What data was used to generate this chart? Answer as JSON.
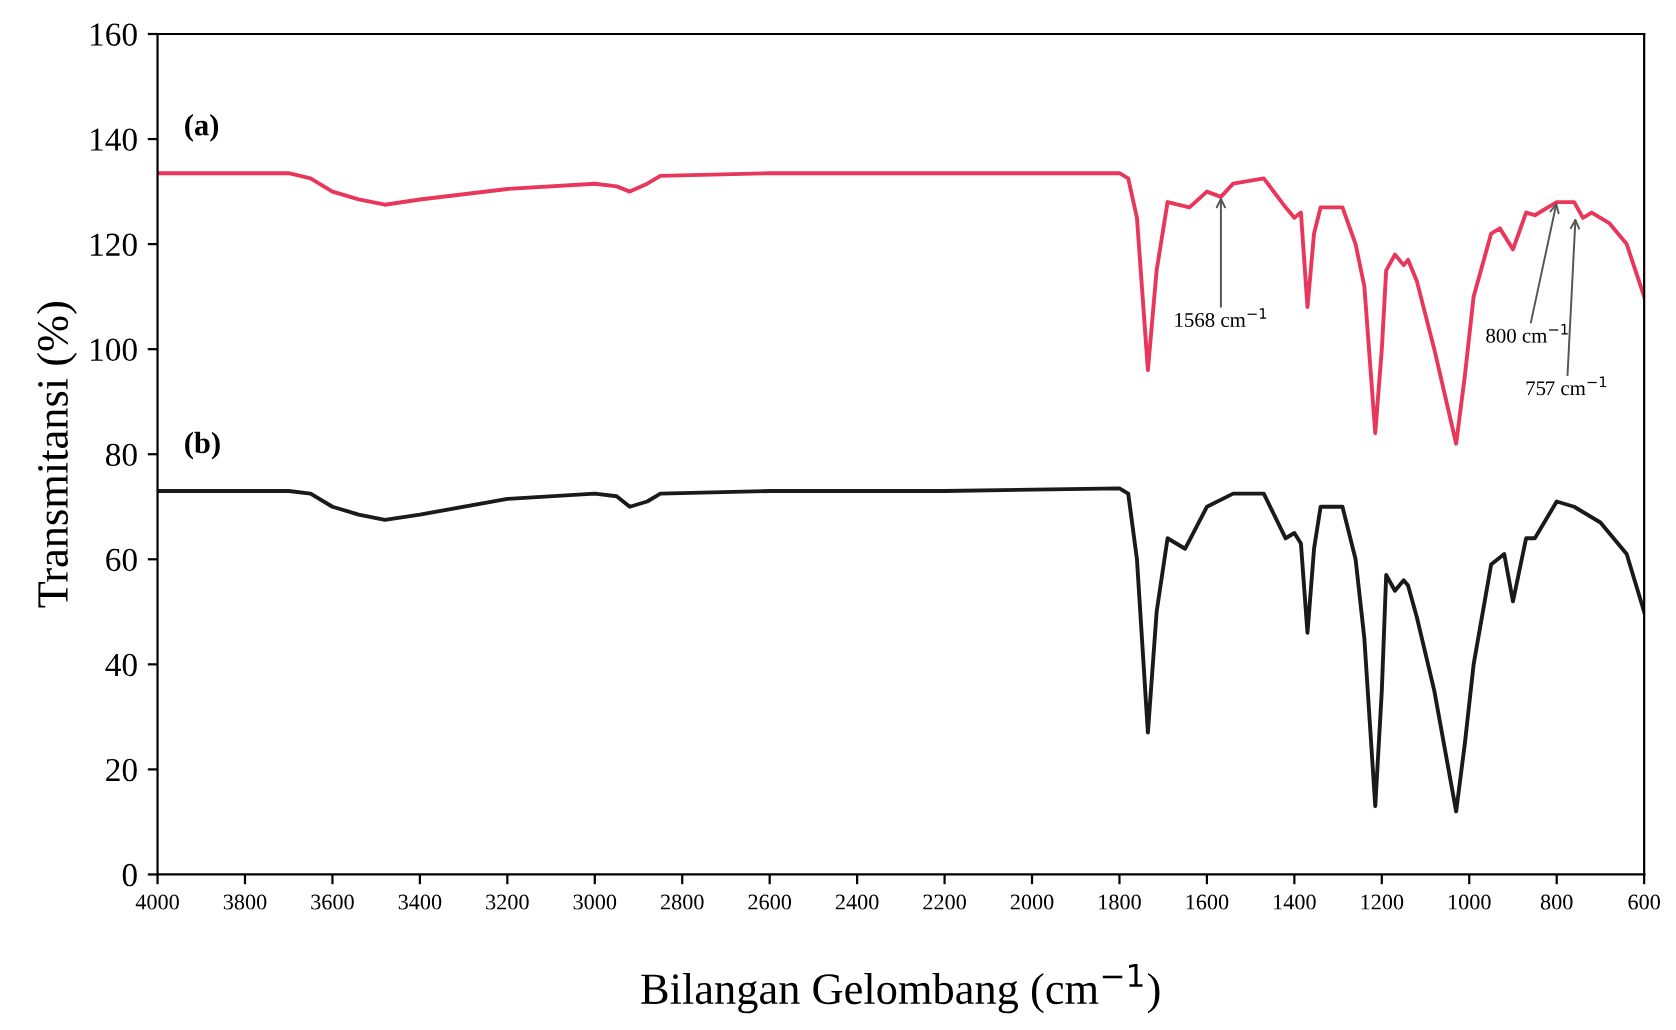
{
  "chart_data": {
    "type": "line",
    "xlabel": "Bilangan Gelombang (cm$^{−1}$)",
    "ylabel": "Transmitansi (%)",
    "xlim": [
      4000,
      600
    ],
    "xticks": [
      4000,
      3800,
      3600,
      3400,
      3200,
      3000,
      2800,
      2600,
      2400,
      2200,
      2000,
      1800,
      1600,
      1400,
      1200,
      1000,
      800,
      600
    ],
    "ylim": [
      0,
      160
    ],
    "yticks": [
      0,
      20,
      40,
      60,
      80,
      100,
      120,
      140,
      160
    ],
    "grid": false,
    "legend": false,
    "marker": "none",
    "line_style": "solid",
    "series": [
      {
        "name": "(a)",
        "color": "#e8375a",
        "x": [
          4000,
          3700,
          3650,
          3600,
          3540,
          3480,
          3400,
          3200,
          3000,
          2950,
          2920,
          2880,
          2850,
          2600,
          2200,
          1800,
          1780,
          1760,
          1735,
          1715,
          1690,
          1640,
          1600,
          1568,
          1540,
          1470,
          1420,
          1400,
          1385,
          1370,
          1355,
          1340,
          1290,
          1260,
          1240,
          1215,
          1200,
          1190,
          1170,
          1150,
          1140,
          1120,
          1080,
          1030,
          1010,
          990,
          950,
          930,
          900,
          870,
          850,
          800,
          760,
          740,
          720,
          680,
          640,
          600
        ],
        "values": [
          133.5,
          133.5,
          132.5,
          130,
          128.5,
          127.5,
          128.5,
          130.5,
          131.5,
          131,
          130,
          131.5,
          133,
          133.5,
          133.5,
          133.5,
          132.5,
          125,
          96,
          115,
          128,
          127,
          130,
          129,
          131.5,
          132.5,
          127,
          125,
          126,
          108,
          122,
          127,
          127,
          120,
          112,
          84,
          100,
          115,
          118,
          116,
          117,
          113,
          100,
          82,
          95,
          110,
          122,
          123,
          119,
          126,
          125.5,
          128,
          128,
          125,
          126,
          124,
          120,
          110
        ]
      },
      {
        "name": "(b)",
        "color": "#1a1a1a",
        "x": [
          4000,
          3700,
          3650,
          3600,
          3540,
          3480,
          3400,
          3200,
          3000,
          2950,
          2920,
          2880,
          2850,
          2600,
          2200,
          1800,
          1780,
          1760,
          1735,
          1715,
          1690,
          1650,
          1600,
          1540,
          1470,
          1420,
          1400,
          1385,
          1370,
          1355,
          1340,
          1290,
          1260,
          1240,
          1215,
          1200,
          1190,
          1170,
          1150,
          1140,
          1120,
          1080,
          1030,
          1010,
          990,
          950,
          920,
          900,
          870,
          850,
          800,
          760,
          700,
          640,
          600
        ],
        "values": [
          73,
          73,
          72.5,
          70,
          68.5,
          67.5,
          68.5,
          71.5,
          72.5,
          72,
          70,
          71,
          72.5,
          73,
          73,
          73.5,
          72.5,
          60,
          27,
          50,
          64,
          62,
          70,
          72.5,
          72.5,
          64,
          65,
          63,
          46,
          62,
          70,
          70,
          60,
          45,
          13,
          35,
          57,
          54,
          56,
          55,
          49,
          35,
          12,
          25,
          40,
          59,
          61,
          52,
          64,
          64,
          71,
          70,
          67,
          61,
          50
        ]
      }
    ],
    "annotations": [
      {
        "text": "1568 cm$^{−1}$",
        "x": 1568,
        "y": 129
      },
      {
        "text": "800 cm$^{−1}$",
        "x": 800,
        "y": 128
      },
      {
        "text": "757 cm$^{−1}$",
        "x": 757,
        "y": 125
      }
    ]
  }
}
